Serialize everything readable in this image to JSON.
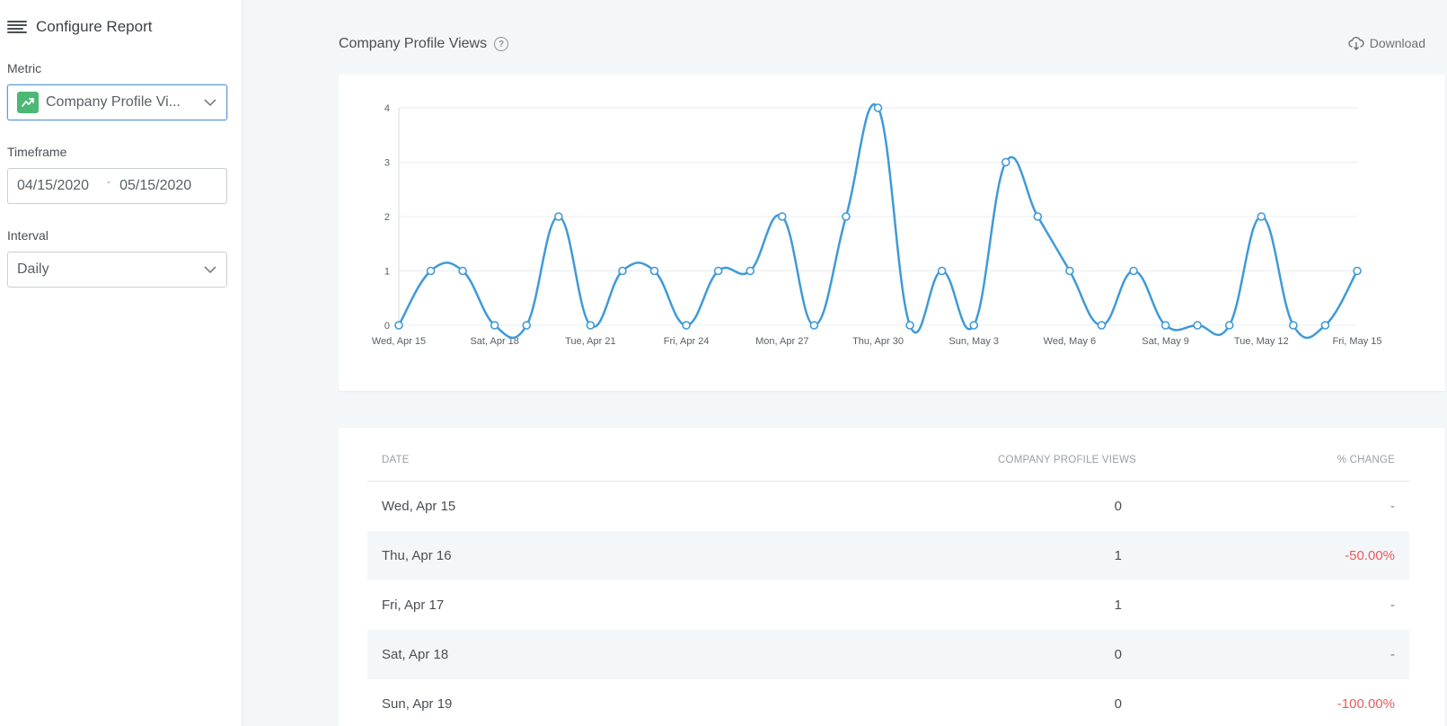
{
  "sidebar": {
    "title": "Configure Report",
    "metric_label": "Metric",
    "metric_value": "Company Profile Vi...",
    "timeframe_label": "Timeframe",
    "date_from": "04/15/2020",
    "date_sep": "-",
    "date_to": "05/15/2020",
    "interval_label": "Interval",
    "interval_value": "Daily"
  },
  "header": {
    "chart_title": "Company Profile Views",
    "help_glyph": "?",
    "download_label": "Download"
  },
  "colors": {
    "line": "#3f9ad8",
    "metric_icon": "#4cb875",
    "negative": "#e85a5a"
  },
  "chart_data": {
    "type": "line",
    "title": "Company Profile Views",
    "xlabel": "",
    "ylabel": "",
    "ylim": [
      0,
      4
    ],
    "yticks": [
      0,
      1,
      2,
      3,
      4
    ],
    "grid": true,
    "x_tick_labels": [
      "Wed, Apr 15",
      "Sat, Apr 18",
      "Tue, Apr 21",
      "Fri, Apr 24",
      "Mon, Apr 27",
      "Thu, Apr 30",
      "Sun, May 3",
      "Wed, May 6",
      "Sat, May 9",
      "Tue, May 12",
      "Fri, May 15"
    ],
    "x_tick_every": 3,
    "series": [
      {
        "values": [
          0,
          1,
          1,
          0,
          0,
          2,
          0,
          1,
          1,
          0,
          1,
          1,
          2,
          0,
          2,
          4,
          0,
          1,
          0,
          3,
          2,
          1,
          0,
          1,
          0,
          0,
          0,
          2,
          0,
          0,
          1
        ]
      }
    ]
  },
  "table": {
    "columns": [
      "DATE",
      "COMPANY PROFILE VIEWS",
      "% CHANGE"
    ],
    "rows": [
      {
        "date": "Wed, Apr 15",
        "views": "0",
        "change": "-",
        "negative": false
      },
      {
        "date": "Thu, Apr 16",
        "views": "1",
        "change": "-50.00%",
        "negative": true
      },
      {
        "date": "Fri, Apr 17",
        "views": "1",
        "change": "-",
        "negative": false
      },
      {
        "date": "Sat, Apr 18",
        "views": "0",
        "change": "-",
        "negative": false
      },
      {
        "date": "Sun, Apr 19",
        "views": "0",
        "change": "-100.00%",
        "negative": true
      }
    ]
  }
}
